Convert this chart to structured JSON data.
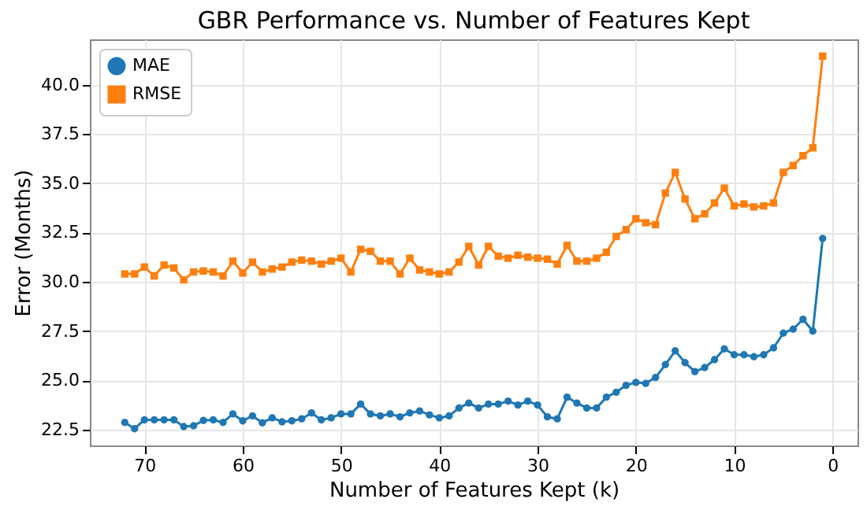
{
  "chart_data": {
    "type": "line",
    "title": "GBR Performance vs. Number of Features Kept",
    "xlabel": "Number of Features Kept (k)",
    "ylabel": "Error (Months)",
    "x": [
      72,
      71,
      70,
      69,
      68,
      67,
      66,
      65,
      64,
      63,
      62,
      61,
      60,
      59,
      58,
      57,
      56,
      55,
      54,
      53,
      52,
      51,
      50,
      49,
      48,
      47,
      46,
      45,
      44,
      43,
      42,
      41,
      40,
      39,
      38,
      37,
      36,
      35,
      34,
      33,
      32,
      31,
      30,
      29,
      28,
      27,
      26,
      25,
      24,
      23,
      22,
      21,
      20,
      19,
      18,
      17,
      16,
      15,
      14,
      13,
      12,
      11,
      10,
      9,
      8,
      7,
      6,
      5,
      4,
      3,
      2,
      1
    ],
    "series": [
      {
        "name": "MAE",
        "color": "#1f77b4",
        "marker": "circle",
        "values": [
          22.87,
          22.55,
          23.0,
          23.0,
          23.0,
          23.0,
          22.66,
          22.7,
          22.97,
          23.0,
          22.87,
          23.3,
          22.95,
          23.2,
          22.85,
          23.1,
          22.9,
          22.95,
          23.05,
          23.35,
          23.0,
          23.1,
          23.3,
          23.3,
          23.8,
          23.3,
          23.2,
          23.3,
          23.15,
          23.35,
          23.45,
          23.25,
          23.1,
          23.2,
          23.6,
          23.85,
          23.6,
          23.8,
          23.8,
          23.95,
          23.75,
          23.95,
          23.75,
          23.15,
          23.05,
          24.15,
          23.85,
          23.6,
          23.6,
          24.15,
          24.4,
          24.75,
          24.9,
          24.85,
          25.15,
          25.8,
          26.5,
          25.9,
          25.45,
          25.65,
          26.05,
          26.6,
          26.3,
          26.3,
          26.2,
          26.3,
          26.65,
          27.4,
          27.6,
          28.1,
          27.5,
          32.2
        ]
      },
      {
        "name": "RMSE",
        "color": "#ff7f0e",
        "marker": "square",
        "values": [
          30.4,
          30.4,
          30.75,
          30.3,
          30.85,
          30.7,
          30.1,
          30.5,
          30.55,
          30.5,
          30.3,
          31.05,
          30.45,
          31.0,
          30.5,
          30.65,
          30.75,
          31.0,
          31.1,
          31.05,
          30.9,
          31.05,
          31.2,
          30.5,
          31.65,
          31.55,
          31.05,
          31.05,
          30.4,
          31.2,
          30.6,
          30.5,
          30.4,
          30.5,
          31.0,
          31.8,
          30.85,
          31.8,
          31.3,
          31.2,
          31.35,
          31.25,
          31.2,
          31.15,
          30.9,
          31.85,
          31.05,
          31.05,
          31.2,
          31.5,
          32.3,
          32.65,
          33.2,
          33.0,
          32.9,
          34.5,
          35.55,
          34.2,
          33.2,
          33.45,
          34.0,
          34.75,
          33.85,
          33.95,
          33.8,
          33.85,
          34.0,
          35.55,
          35.9,
          36.4,
          36.8,
          41.45
        ]
      }
    ],
    "xlim": [
      75.55,
      -2.55
    ],
    "xticks": [
      70,
      60,
      50,
      40,
      30,
      20,
      10,
      0
    ],
    "ylim": [
      21.7,
      42.3
    ],
    "yticks": [
      {
        "value": 22.5,
        "label": "22.5"
      },
      {
        "value": 25,
        "label": "25.0"
      },
      {
        "value": 27.5,
        "label": "27.5"
      },
      {
        "value": 30,
        "label": "30.0"
      },
      {
        "value": 32.5,
        "label": "32.5"
      },
      {
        "value": 35,
        "label": "35.0"
      },
      {
        "value": 37.5,
        "label": "37.5"
      },
      {
        "value": 40,
        "label": "40.0"
      }
    ],
    "grid": true,
    "legend": "top left",
    "line_style": "solid"
  }
}
